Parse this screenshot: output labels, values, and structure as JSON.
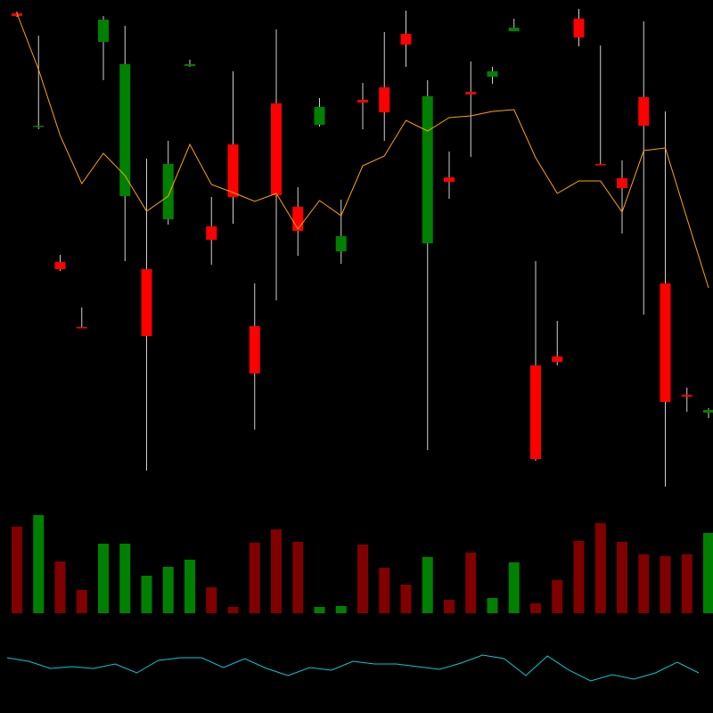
{
  "chart_data": {
    "type": "candlestick",
    "open": [
      545,
      418,
      266,
      193,
      513,
      340,
      258,
      314,
      486,
      306,
      398,
      194,
      444,
      328,
      420,
      278,
      448,
      462,
      522,
      287,
      361,
      457,
      474,
      525,
      150,
      160,
      539,
      376,
      360,
      451,
      242,
      117,
      97
    ],
    "high": [
      547,
      520,
      274,
      215,
      542,
      531,
      382,
      402,
      493,
      339,
      480,
      242,
      527,
      350,
      450,
      336,
      467,
      524,
      548,
      470,
      390,
      491,
      485,
      539,
      267,
      200,
      550,
      509,
      380,
      536,
      435,
      125,
      102
    ],
    "low": [
      541,
      415,
      256,
      192,
      470,
      267,
      32,
      308,
      485,
      263,
      309,
      78,
      223,
      273,
      418,
      264,
      415,
      402,
      485,
      55,
      337,
      384,
      466,
      525,
      43,
      150,
      508,
      375,
      298,
      207,
      14,
      98,
      91
    ],
    "close": [
      542,
      419,
      258,
      193,
      538,
      488,
      183,
      376,
      488,
      291,
      339,
      141,
      341,
      301,
      440,
      295,
      445,
      434,
      510,
      452,
      356,
      454,
      480,
      529,
      45,
      154,
      518,
      375,
      349,
      419,
      109,
      115,
      100
    ],
    "up_color": "#008000",
    "down_color": "#ff0000",
    "wick_color": "#d0d0d0",
    "ylim": [
      0,
      560
    ],
    "moving_average": {
      "color": "#ffa500",
      "values": [
        545,
        482,
        408,
        354,
        388,
        363,
        323,
        340,
        398,
        353,
        344,
        334,
        343,
        303,
        335,
        318,
        374,
        385,
        425,
        413,
        428,
        430,
        435,
        437,
        383,
        343,
        357,
        357,
        322,
        391,
        394,
        315,
        237
      ]
    },
    "volume": {
      "ylim": [
        0,
        120
      ],
      "values": [
        97,
        110,
        58,
        26,
        78,
        78,
        42,
        52,
        60,
        29,
        7,
        79,
        94,
        80,
        7,
        8,
        77,
        51,
        32,
        63,
        15,
        68,
        17,
        57,
        11,
        37,
        81,
        101,
        80,
        66,
        64,
        66,
        90
      ],
      "colors": [
        "#800000",
        "#008000",
        "#800000",
        "#800000",
        "#008000",
        "#008000",
        "#008000",
        "#008000",
        "#008000",
        "#800000",
        "#800000",
        "#800000",
        "#800000",
        "#800000",
        "#008000",
        "#008000",
        "#800000",
        "#800000",
        "#800000",
        "#008000",
        "#800000",
        "#800000",
        "#008000",
        "#008000",
        "#800000",
        "#800000",
        "#800000",
        "#800000",
        "#800000",
        "#800000",
        "#800000",
        "#800000",
        "#008000"
      ]
    },
    "indicator": {
      "color": "#00ced1",
      "ylim": [
        0,
        100
      ],
      "values": [
        62,
        58,
        50,
        52,
        50,
        55,
        45,
        59,
        62,
        62,
        51,
        61,
        50,
        42,
        51,
        48,
        58,
        55,
        55,
        52,
        49,
        56,
        65,
        61,
        42,
        64,
        48,
        36,
        43,
        38,
        45,
        57,
        45
      ]
    }
  }
}
